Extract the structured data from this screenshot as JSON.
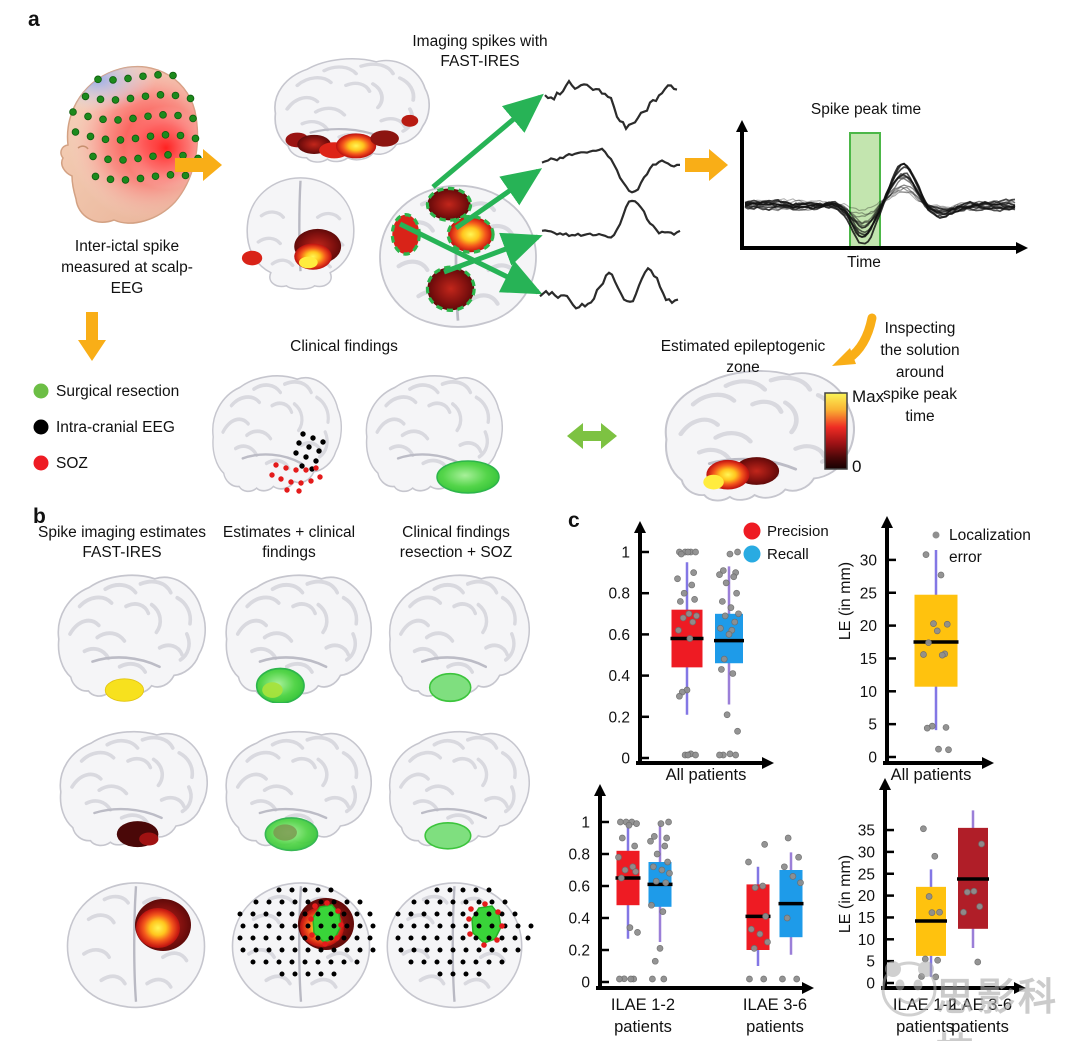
{
  "panel_a": {
    "label": "a",
    "head_caption": [
      "Inter-ictal spike",
      "measured at scalp-",
      "EEG"
    ],
    "imaging_title": [
      "Imaging spikes with",
      "FAST-IRES"
    ],
    "spike_plot": {
      "title": "Spike peak time",
      "xlabel": "Time"
    },
    "inspect_note": [
      "Inspecting",
      "the solution",
      "around",
      "spike peak",
      "time"
    ],
    "legend": [
      {
        "label": "Surgical resection",
        "color": "#6CBE45"
      },
      {
        "label": "Intra-cranial EEG",
        "color": "#000000"
      },
      {
        "label": "SOZ",
        "color": "#EE1B23"
      }
    ],
    "clinical_title": "Clinical findings",
    "ez_title": [
      "Estimated epileptogenic",
      "zone"
    ],
    "colorbar": {
      "max": "Max",
      "zero": "0"
    }
  },
  "panel_b": {
    "label": "b",
    "columns": [
      [
        "Spike imaging estimates",
        "FAST-IRES"
      ],
      [
        "Estimates + clinical",
        "findings"
      ],
      [
        "Clinical findings",
        "resection + SOZ"
      ]
    ]
  },
  "panel_c": {
    "label": "c"
  },
  "watermark": {
    "text": "思影科技"
  },
  "chart_data": [
    {
      "id": "precision_recall_all",
      "type": "box",
      "categories": [
        [
          "All patients"
        ]
      ],
      "ylabel": "",
      "ylim": [
        0,
        1.05
      ],
      "yticks": [
        0,
        0.2,
        0.4,
        0.6,
        0.8,
        1
      ],
      "legend": [
        {
          "label": "Precision",
          "color": "#EE1B23"
        },
        {
          "label": "Recall",
          "color": "#29ABE2"
        }
      ],
      "series": [
        {
          "name": "Precision",
          "category": "All patients",
          "color": "#EE1B23",
          "q1": 0.44,
          "median": 0.58,
          "q3": 0.72,
          "whisker_low": 0.21,
          "whisker_high": 0.95,
          "points": [
            1,
            1,
            1,
            1,
            1,
            0.99,
            0.9,
            0.87,
            0.84,
            0.8,
            0.77,
            0.76,
            0.7,
            0.69,
            0.68,
            0.66,
            0.62,
            0.58,
            0.33,
            0.32,
            0.3,
            0.02,
            0.01,
            0,
            0
          ]
        },
        {
          "name": "Recall",
          "category": "All patients",
          "color": "#1E9BE9",
          "q1": 0.46,
          "median": 0.57,
          "q3": 0.7,
          "whisker_low": 0.26,
          "whisker_high": 0.93,
          "points": [
            1,
            0.99,
            0.91,
            0.9,
            0.89,
            0.88,
            0.85,
            0.8,
            0.76,
            0.73,
            0.7,
            0.69,
            0.66,
            0.63,
            0.62,
            0.6,
            0.48,
            0.43,
            0.41,
            0.21,
            0.13,
            0.02,
            0.01,
            0,
            0
          ]
        }
      ]
    },
    {
      "id": "localization_error_all",
      "type": "box",
      "categories": [
        [
          "All patients"
        ]
      ],
      "ylabel": "LE (in mm)",
      "ylim": [
        0,
        33
      ],
      "yticks": [
        0,
        5,
        10,
        15,
        20,
        25,
        30
      ],
      "legend": [
        {
          "label": "Localization error",
          "color": "#8F8F8F"
        }
      ],
      "series": [
        {
          "name": "Localization error",
          "category": "All patients",
          "color": "#FFC20E",
          "q1": 10.7,
          "median": 17.5,
          "q3": 24.7,
          "whisker_low": 4.1,
          "whisker_high": 31.5,
          "points": [
            30.8,
            27.7,
            20.3,
            20.2,
            19.2,
            17.4,
            15.7,
            15.6,
            15.5,
            4.7,
            4.5,
            4.4,
            1.2,
            1.1
          ]
        }
      ]
    },
    {
      "id": "precision_recall_ilae",
      "type": "box",
      "categories": [
        [
          "ILAE 1-2",
          "patients"
        ],
        [
          "ILAE 3-6",
          "patients"
        ]
      ],
      "ylabel": "",
      "ylim": [
        0,
        1.05
      ],
      "yticks": [
        0,
        0.2,
        0.4,
        0.6,
        0.8,
        1
      ],
      "series": [
        {
          "name": "Precision",
          "category": "ILAE 1-2",
          "color": "#EE1B23",
          "q1": 0.48,
          "median": 0.65,
          "q3": 0.82,
          "whisker_low": 0.27,
          "whisker_high": 1.0,
          "points": [
            1,
            1,
            1,
            0.99,
            0.98,
            0.9,
            0.85,
            0.78,
            0.72,
            0.7,
            0.69,
            0.65,
            0.34,
            0.31,
            0.02,
            0.01,
            0,
            0
          ]
        },
        {
          "name": "Recall",
          "category": "ILAE 1-2",
          "color": "#1E9BE9",
          "q1": 0.47,
          "median": 0.61,
          "q3": 0.75,
          "whisker_low": 0.25,
          "whisker_high": 1.0,
          "points": [
            1,
            0.99,
            0.91,
            0.9,
            0.88,
            0.85,
            0.8,
            0.75,
            0.72,
            0.7,
            0.68,
            0.63,
            0.62,
            0.48,
            0.44,
            0.21,
            0.13,
            0.01,
            0
          ]
        },
        {
          "name": "Precision",
          "category": "ILAE 3-6",
          "color": "#EE1B23",
          "q1": 0.2,
          "median": 0.41,
          "q3": 0.61,
          "whisker_low": 0.1,
          "whisker_high": 0.72,
          "points": [
            0.86,
            0.75,
            0.6,
            0.59,
            0.41,
            0.33,
            0.3,
            0.25,
            0.21,
            0,
            0
          ]
        },
        {
          "name": "Recall",
          "category": "ILAE 3-6",
          "color": "#1E9BE9",
          "q1": 0.28,
          "median": 0.49,
          "q3": 0.7,
          "whisker_low": 0.17,
          "whisker_high": 0.81,
          "points": [
            0.9,
            0.78,
            0.72,
            0.66,
            0.62,
            0.4,
            0,
            0
          ]
        }
      ]
    },
    {
      "id": "localization_error_ilae",
      "type": "box",
      "categories": [
        [
          "ILAE 1-2",
          "patients"
        ],
        [
          "ILAE 3-6",
          "patients"
        ]
      ],
      "ylabel": "LE (in mm)",
      "ylim": [
        0,
        40
      ],
      "yticks": [
        0,
        5,
        10,
        15,
        20,
        25,
        30,
        35
      ],
      "series": [
        {
          "name": "ILAE 1-2",
          "category": "ILAE 1-2",
          "color": "#FFC20E",
          "q1": 6.2,
          "median": 14.2,
          "q3": 22,
          "whisker_low": 1.4,
          "whisker_high": 26,
          "points": [
            35.3,
            29,
            19.8,
            16.2,
            16.1,
            5.5,
            5.2,
            1.5,
            1.4
          ]
        },
        {
          "name": "ILAE 3-6",
          "category": "ILAE 3-6",
          "color": "#B01E28",
          "q1": 12.4,
          "median": 23.8,
          "q3": 35.5,
          "whisker_low": 8,
          "whisker_high": 39.5,
          "points": [
            31.8,
            21,
            20.8,
            17.5,
            16.2,
            4.8
          ]
        }
      ]
    }
  ]
}
